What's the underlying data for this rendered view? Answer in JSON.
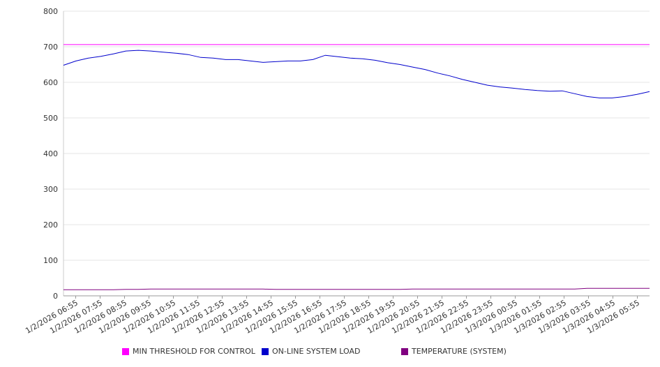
{
  "chart_data": {
    "type": "line",
    "title": "",
    "xlabel": "",
    "ylabel": "",
    "ylim": [
      0,
      800
    ],
    "yticks": [
      0,
      100,
      200,
      300,
      400,
      500,
      600,
      700,
      800
    ],
    "x_tick_labels": [
      "1/2/2026 06:55",
      "1/2/2026 07:55",
      "1/2/2026 08:55",
      "1/2/2026 09:55",
      "1/2/2026 10:55",
      "1/2/2026 11:55",
      "1/2/2026 12:55",
      "1/2/2026 13:55",
      "1/2/2026 14:55",
      "1/2/2026 15:55",
      "1/2/2026 16:55",
      "1/2/2026 17:55",
      "1/2/2026 18:55",
      "1/2/2026 19:55",
      "1/2/2026 20:55",
      "1/2/2026 21:55",
      "1/2/2026 22:55",
      "1/2/2026 23:55",
      "1/3/2026 00:55",
      "1/3/2026 01:55",
      "1/3/2026 02:55",
      "1/3/2026 03:55",
      "1/3/2026 04:55",
      "1/3/2026 05:55"
    ],
    "x": [
      "1/2/2026 06:55",
      "1/2/2026 07:25",
      "1/2/2026 07:55",
      "1/2/2026 08:25",
      "1/2/2026 08:55",
      "1/2/2026 09:25",
      "1/2/2026 09:55",
      "1/2/2026 10:25",
      "1/2/2026 10:55",
      "1/2/2026 11:25",
      "1/2/2026 11:55",
      "1/2/2026 12:25",
      "1/2/2026 12:55",
      "1/2/2026 13:25",
      "1/2/2026 13:55",
      "1/2/2026 14:25",
      "1/2/2026 14:55",
      "1/2/2026 15:25",
      "1/2/2026 15:55",
      "1/2/2026 16:25",
      "1/2/2026 16:55",
      "1/2/2026 17:25",
      "1/2/2026 17:55",
      "1/2/2026 18:25",
      "1/2/2026 18:55",
      "1/2/2026 19:25",
      "1/2/2026 19:55",
      "1/2/2026 20:25",
      "1/2/2026 20:55",
      "1/2/2026 21:25",
      "1/2/2026 21:55",
      "1/2/2026 22:25",
      "1/2/2026 22:55",
      "1/2/2026 23:25",
      "1/2/2026 23:55",
      "1/3/2026 00:25",
      "1/3/2026 00:55",
      "1/3/2026 01:25",
      "1/3/2026 01:55",
      "1/3/2026 02:25",
      "1/3/2026 02:55",
      "1/3/2026 03:25",
      "1/3/2026 03:55",
      "1/3/2026 04:25",
      "1/3/2026 04:55",
      "1/3/2026 05:25",
      "1/3/2026 05:55",
      "1/3/2026 06:25"
    ],
    "series": [
      {
        "name": "MIN THRESHOLD FOR CONTROL",
        "color": "#ff00ff",
        "values": [
          706,
          706,
          706,
          706,
          706,
          706,
          706,
          706,
          706,
          706,
          706,
          706,
          706,
          706,
          706,
          706,
          706,
          706,
          706,
          706,
          706,
          706,
          706,
          706,
          706,
          706,
          706,
          706,
          706,
          706,
          706,
          706,
          706,
          706,
          706,
          706,
          706,
          706,
          706,
          706,
          706,
          706,
          706,
          706,
          706,
          706,
          706,
          706
        ]
      },
      {
        "name": "ON-LINE SYSTEM LOAD",
        "color": "#0000cc",
        "values": [
          648,
          660,
          668,
          673,
          680,
          688,
          690,
          688,
          685,
          682,
          678,
          670,
          668,
          664,
          664,
          660,
          656,
          658,
          660,
          660,
          664,
          676,
          672,
          668,
          666,
          662,
          655,
          650,
          643,
          636,
          626,
          618,
          608,
          600,
          592,
          587,
          584,
          580,
          577,
          575,
          576,
          568,
          560,
          556,
          556,
          560,
          566,
          574
        ]
      },
      {
        "name": "TEMPERATURE (SYSTEM)",
        "color": "#800080",
        "values": [
          17,
          17,
          17,
          17,
          17,
          18,
          18,
          19,
          19,
          19,
          19,
          19,
          19,
          19,
          19,
          19,
          19,
          18,
          18,
          18,
          18,
          18,
          18,
          18,
          18,
          18,
          18,
          18,
          19,
          19,
          19,
          19,
          19,
          19,
          19,
          19,
          19,
          19,
          19,
          19,
          19,
          19,
          21,
          21,
          21,
          21,
          21,
          21
        ]
      }
    ],
    "grid": true,
    "legend_position": "bottom"
  }
}
